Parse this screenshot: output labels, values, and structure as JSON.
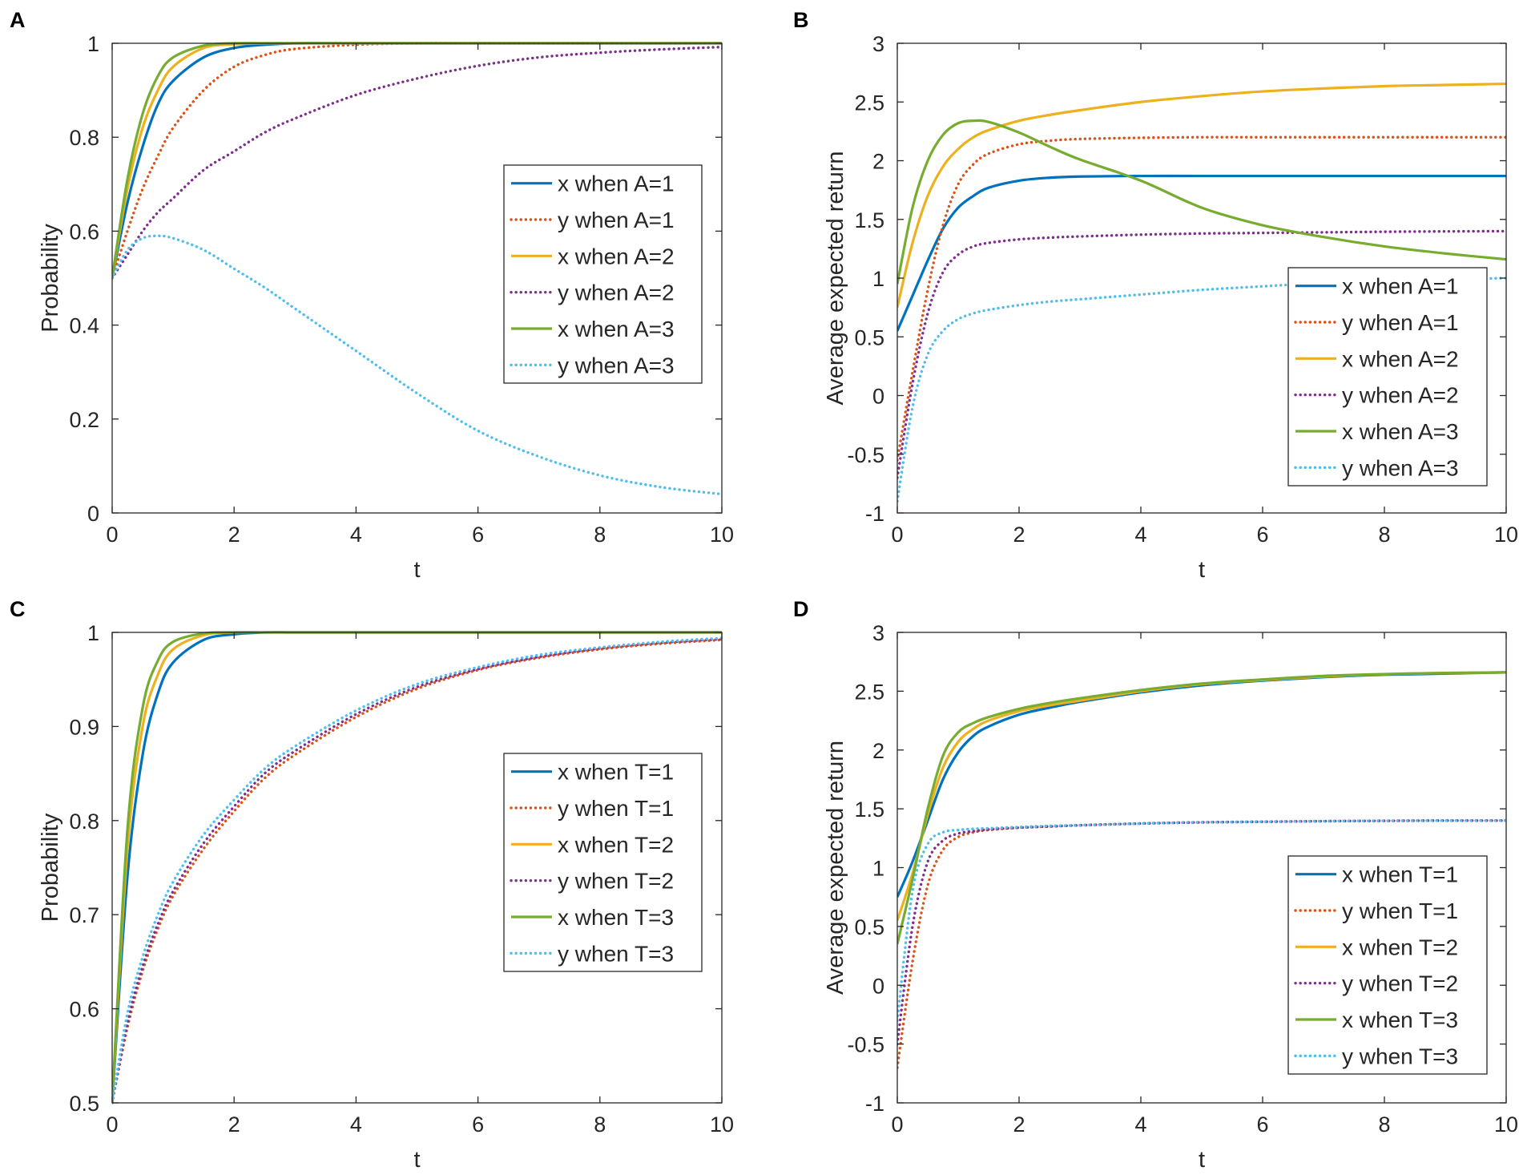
{
  "colors": {
    "blue": "#0072BD",
    "orange": "#D95319",
    "yellow": "#EDB120",
    "purple": "#7E2F8E",
    "green": "#77AC30",
    "cyan": "#4DBEEE"
  },
  "chart_data": [
    {
      "panel": "A",
      "type": "line",
      "xlabel": "t",
      "ylabel": "Probability",
      "xlim": [
        0,
        10
      ],
      "ylim": [
        0,
        1
      ],
      "xticks": [
        "0",
        "2",
        "4",
        "6",
        "8",
        "10"
      ],
      "yticks": [
        "0",
        "0.2",
        "0.4",
        "0.6",
        "0.8",
        "1"
      ],
      "legend_position": "right-middle",
      "x": [
        0,
        0.25,
        0.5,
        0.75,
        1,
        1.5,
        2,
        2.5,
        3,
        4,
        5,
        6,
        7,
        8,
        9,
        10
      ],
      "series": [
        {
          "name": "x when A=1",
          "color": "blue",
          "style": "solid",
          "values": [
            0.5,
            0.66,
            0.78,
            0.87,
            0.92,
            0.97,
            0.99,
            0.997,
            1,
            1,
            1,
            1,
            1,
            1,
            1,
            1
          ]
        },
        {
          "name": "y when A=1",
          "color": "orange",
          "style": "dotted",
          "values": [
            0.5,
            0.6,
            0.69,
            0.76,
            0.82,
            0.9,
            0.95,
            0.975,
            0.988,
            0.997,
            1,
            1,
            1,
            1,
            1,
            1
          ]
        },
        {
          "name": "x when A=2",
          "color": "yellow",
          "style": "solid",
          "values": [
            0.5,
            0.69,
            0.82,
            0.9,
            0.95,
            0.99,
            0.998,
            1,
            1,
            1,
            1,
            1,
            1,
            1,
            1,
            1
          ]
        },
        {
          "name": "y when A=2",
          "color": "purple",
          "style": "dotted",
          "values": [
            0.5,
            0.55,
            0.6,
            0.64,
            0.67,
            0.73,
            0.77,
            0.81,
            0.84,
            0.89,
            0.925,
            0.952,
            0.97,
            0.98,
            0.987,
            0.992
          ]
        },
        {
          "name": "x when A=3",
          "color": "green",
          "style": "solid",
          "values": [
            0.5,
            0.71,
            0.85,
            0.93,
            0.97,
            0.995,
            1,
            1,
            1,
            1,
            1,
            1,
            1,
            1,
            1,
            1
          ]
        },
        {
          "name": "y when A=3",
          "color": "cyan",
          "style": "dotted",
          "values": [
            0.5,
            0.56,
            0.585,
            0.59,
            0.585,
            0.56,
            0.52,
            0.48,
            0.435,
            0.345,
            0.255,
            0.175,
            0.12,
            0.08,
            0.055,
            0.04
          ]
        }
      ]
    },
    {
      "panel": "B",
      "type": "line",
      "xlabel": "t",
      "ylabel": "Average expected return",
      "xlim": [
        0,
        10
      ],
      "ylim": [
        -1,
        3
      ],
      "xticks": [
        "0",
        "2",
        "4",
        "6",
        "8",
        "10"
      ],
      "yticks": [
        "-1",
        "-0.5",
        "0",
        "0.5",
        "1",
        "1.5",
        "2",
        "2.5",
        "3"
      ],
      "legend_position": "bottom-right",
      "x": [
        0,
        0.25,
        0.5,
        0.75,
        1,
        1.25,
        1.5,
        2,
        2.5,
        3,
        4,
        5,
        6,
        7,
        8,
        9,
        10
      ],
      "series": [
        {
          "name": "x when A=1",
          "color": "blue",
          "style": "solid",
          "values": [
            0.55,
            0.85,
            1.15,
            1.42,
            1.6,
            1.7,
            1.77,
            1.83,
            1.855,
            1.865,
            1.87,
            1.87,
            1.87,
            1.87,
            1.87,
            1.87,
            1.87
          ]
        },
        {
          "name": "y when A=1",
          "color": "orange",
          "style": "dotted",
          "values": [
            -0.55,
            0.2,
            0.9,
            1.45,
            1.8,
            1.97,
            2.06,
            2.14,
            2.17,
            2.185,
            2.195,
            2.2,
            2.2,
            2.2,
            2.2,
            2.2,
            2.2
          ]
        },
        {
          "name": "x when A=2",
          "color": "yellow",
          "style": "solid",
          "values": [
            0.75,
            1.3,
            1.7,
            1.95,
            2.1,
            2.2,
            2.26,
            2.34,
            2.39,
            2.43,
            2.5,
            2.55,
            2.59,
            2.615,
            2.635,
            2.645,
            2.655
          ]
        },
        {
          "name": "y when A=2",
          "color": "purple",
          "style": "dotted",
          "values": [
            -0.7,
            0.1,
            0.7,
            1.05,
            1.2,
            1.27,
            1.3,
            1.33,
            1.345,
            1.355,
            1.37,
            1.38,
            1.385,
            1.39,
            1.395,
            1.398,
            1.4
          ]
        },
        {
          "name": "x when A=3",
          "color": "green",
          "style": "solid",
          "values": [
            0.95,
            1.6,
            2.0,
            2.22,
            2.32,
            2.34,
            2.33,
            2.24,
            2.12,
            2.01,
            1.83,
            1.6,
            1.45,
            1.35,
            1.27,
            1.21,
            1.16
          ]
        },
        {
          "name": "y when A=3",
          "color": "cyan",
          "style": "dotted",
          "values": [
            -0.9,
            -0.1,
            0.35,
            0.55,
            0.65,
            0.7,
            0.73,
            0.77,
            0.8,
            0.82,
            0.86,
            0.9,
            0.93,
            0.96,
            0.98,
            0.99,
            1.0
          ]
        }
      ]
    },
    {
      "panel": "C",
      "type": "line",
      "xlabel": "t",
      "ylabel": "Probability",
      "xlim": [
        0,
        10
      ],
      "ylim": [
        0.5,
        1
      ],
      "xticks": [
        "0",
        "2",
        "4",
        "6",
        "8",
        "10"
      ],
      "yticks": [
        "0.5",
        "0.6",
        "0.7",
        "0.8",
        "0.9",
        "1"
      ],
      "legend_position": "right-middle",
      "x": [
        0,
        0.25,
        0.5,
        0.75,
        1,
        1.5,
        2,
        2.5,
        3,
        4,
        5,
        6,
        7,
        8,
        9,
        10
      ],
      "series": [
        {
          "name": "x when T=1",
          "color": "blue",
          "style": "solid",
          "values": [
            0.5,
            0.74,
            0.87,
            0.935,
            0.968,
            0.992,
            0.998,
            1,
            1,
            1,
            1,
            1,
            1,
            1,
            1,
            1
          ]
        },
        {
          "name": "y when T=1",
          "color": "orange",
          "style": "dotted",
          "values": [
            0.5,
            0.58,
            0.64,
            0.685,
            0.72,
            0.77,
            0.81,
            0.845,
            0.87,
            0.91,
            0.94,
            0.96,
            0.973,
            0.982,
            0.988,
            0.992
          ]
        },
        {
          "name": "x when T=2",
          "color": "yellow",
          "style": "solid",
          "values": [
            0.5,
            0.77,
            0.9,
            0.955,
            0.982,
            0.997,
            1,
            1,
            1,
            1,
            1,
            1,
            1,
            1,
            1,
            1
          ]
        },
        {
          "name": "y when T=2",
          "color": "purple",
          "style": "dotted",
          "values": [
            0.5,
            0.585,
            0.645,
            0.69,
            0.725,
            0.776,
            0.815,
            0.85,
            0.874,
            0.913,
            0.942,
            0.961,
            0.974,
            0.983,
            0.989,
            0.993
          ]
        },
        {
          "name": "x when T=3",
          "color": "green",
          "style": "solid",
          "values": [
            0.5,
            0.79,
            0.92,
            0.97,
            0.99,
            0.999,
            1,
            1,
            1,
            1,
            1,
            1,
            1,
            1,
            1,
            1
          ]
        },
        {
          "name": "y when T=3",
          "color": "cyan",
          "style": "dotted",
          "values": [
            0.5,
            0.595,
            0.655,
            0.7,
            0.735,
            0.785,
            0.822,
            0.855,
            0.879,
            0.917,
            0.945,
            0.963,
            0.976,
            0.984,
            0.99,
            0.994
          ]
        }
      ]
    },
    {
      "panel": "D",
      "type": "line",
      "xlabel": "t",
      "ylabel": "Average expected return",
      "xlim": [
        0,
        10
      ],
      "ylim": [
        -1,
        3
      ],
      "xticks": [
        "0",
        "2",
        "4",
        "6",
        "8",
        "10"
      ],
      "yticks": [
        "-1",
        "-0.5",
        "0",
        "0.5",
        "1",
        "1.5",
        "2",
        "2.5",
        "3"
      ],
      "legend_position": "bottom-right",
      "x": [
        0,
        0.25,
        0.5,
        0.75,
        1,
        1.25,
        1.5,
        2,
        2.5,
        3,
        4,
        5,
        6,
        7,
        8,
        9,
        10
      ],
      "series": [
        {
          "name": "x when T=1",
          "color": "blue",
          "style": "solid",
          "values": [
            0.75,
            1.05,
            1.4,
            1.75,
            1.98,
            2.12,
            2.2,
            2.3,
            2.36,
            2.41,
            2.49,
            2.55,
            2.59,
            2.62,
            2.64,
            2.65,
            2.66
          ]
        },
        {
          "name": "y when T=1",
          "color": "orange",
          "style": "dotted",
          "values": [
            -0.7,
            0.2,
            0.85,
            1.15,
            1.26,
            1.3,
            1.32,
            1.34,
            1.35,
            1.36,
            1.375,
            1.385,
            1.39,
            1.395,
            1.398,
            1.4,
            1.4
          ]
        },
        {
          "name": "x when T=2",
          "color": "yellow",
          "style": "solid",
          "values": [
            0.55,
            0.95,
            1.45,
            1.85,
            2.07,
            2.18,
            2.25,
            2.33,
            2.38,
            2.42,
            2.5,
            2.56,
            2.595,
            2.625,
            2.645,
            2.655,
            2.66
          ]
        },
        {
          "name": "y when T=2",
          "color": "purple",
          "style": "dotted",
          "values": [
            -0.5,
            0.5,
            1.05,
            1.23,
            1.29,
            1.31,
            1.325,
            1.34,
            1.35,
            1.36,
            1.375,
            1.385,
            1.39,
            1.395,
            1.398,
            1.4,
            1.4
          ]
        },
        {
          "name": "x when T=3",
          "color": "green",
          "style": "solid",
          "values": [
            0.35,
            0.9,
            1.5,
            1.95,
            2.15,
            2.23,
            2.28,
            2.35,
            2.4,
            2.44,
            2.51,
            2.565,
            2.6,
            2.63,
            2.645,
            2.655,
            2.66
          ]
        },
        {
          "name": "y when T=3",
          "color": "cyan",
          "style": "dotted",
          "values": [
            -0.3,
            0.8,
            1.2,
            1.3,
            1.32,
            1.33,
            1.335,
            1.345,
            1.355,
            1.36,
            1.375,
            1.385,
            1.39,
            1.395,
            1.398,
            1.4,
            1.4
          ]
        }
      ]
    }
  ]
}
